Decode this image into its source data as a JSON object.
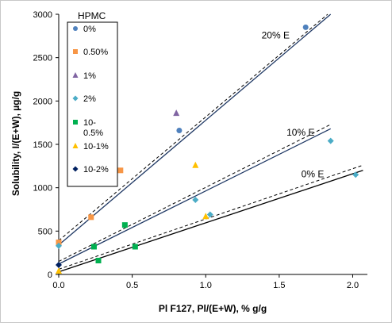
{
  "chart_data": {
    "type": "scatter",
    "xlabel": "Pl F127, Pl/(E+W), % g/g",
    "ylabel": "Solubility, I/(E+W), µg/g",
    "xlim": [
      0,
      2.1
    ],
    "ylim": [
      0,
      3000
    ],
    "xticks": [
      "0.0",
      "0.5",
      "1.0",
      "1.5",
      "2.0"
    ],
    "yticks": [
      "0",
      "500",
      "1000",
      "1500",
      "2000",
      "2500",
      "3000"
    ],
    "xtick_values": [
      0,
      0.5,
      1.0,
      1.5,
      2.0
    ],
    "ytick_values": [
      0,
      500,
      1000,
      1500,
      2000,
      2500,
      3000
    ],
    "grid": false,
    "legend_title": "HPMC",
    "legend_position": "top-left",
    "series": [
      {
        "name": "0%",
        "marker": "circle",
        "color": "#4f81bd",
        "points": [
          [
            0.0,
            340
          ],
          [
            0.82,
            1660
          ],
          [
            1.68,
            2850
          ]
        ]
      },
      {
        "name": "0.50%",
        "marker": "square",
        "color": "#f79646",
        "points": [
          [
            0.0,
            370
          ],
          [
            0.22,
            660
          ],
          [
            0.42,
            1200
          ]
        ]
      },
      {
        "name": "1%",
        "marker": "triangle",
        "color": "#8064a2",
        "points": [
          [
            0.8,
            1860
          ]
        ]
      },
      {
        "name": "2%",
        "marker": "diamond",
        "color": "#4bacc6",
        "points": [
          [
            0.0,
            330
          ],
          [
            0.93,
            860
          ],
          [
            1.85,
            1540
          ],
          [
            2.02,
            1150
          ],
          [
            1.03,
            690
          ]
        ]
      },
      {
        "name": "10-\n0.5%",
        "marker": "square",
        "color": "#00b050",
        "points": [
          [
            0.24,
            320
          ],
          [
            0.27,
            160
          ],
          [
            0.45,
            570
          ],
          [
            0.52,
            320
          ]
        ]
      },
      {
        "name": "10-1%",
        "marker": "triangle",
        "color": "#ffc000",
        "points": [
          [
            0.0,
            40
          ],
          [
            0.93,
            1260
          ],
          [
            1.0,
            670
          ]
        ]
      },
      {
        "name": "10-2%",
        "marker": "diamond",
        "color": "#002060",
        "points": [
          [
            0.0,
            110
          ]
        ]
      }
    ],
    "trendlines": [
      {
        "label": "20% E",
        "color": "#1f3864",
        "solid": [
          [
            0.0,
            340
          ],
          [
            1.85,
            3000
          ]
        ],
        "dashed": [
          [
            0.0,
            390
          ],
          [
            1.83,
            3000
          ]
        ],
        "label_at": [
          1.38,
          2720
        ]
      },
      {
        "label": "10% E",
        "color": "#1f3864",
        "solid": [
          [
            0.0,
            120
          ],
          [
            1.85,
            1680
          ]
        ],
        "dashed": [
          [
            0.0,
            150
          ],
          [
            1.85,
            1730
          ]
        ],
        "label_at": [
          1.55,
          1600
        ]
      },
      {
        "label": "0% E",
        "color": "#000000",
        "solid": [
          [
            0.0,
            30
          ],
          [
            2.07,
            1200
          ]
        ],
        "dashed": [
          [
            0.0,
            60
          ],
          [
            2.07,
            1260
          ]
        ],
        "label_at": [
          1.65,
          1120
        ]
      }
    ]
  }
}
